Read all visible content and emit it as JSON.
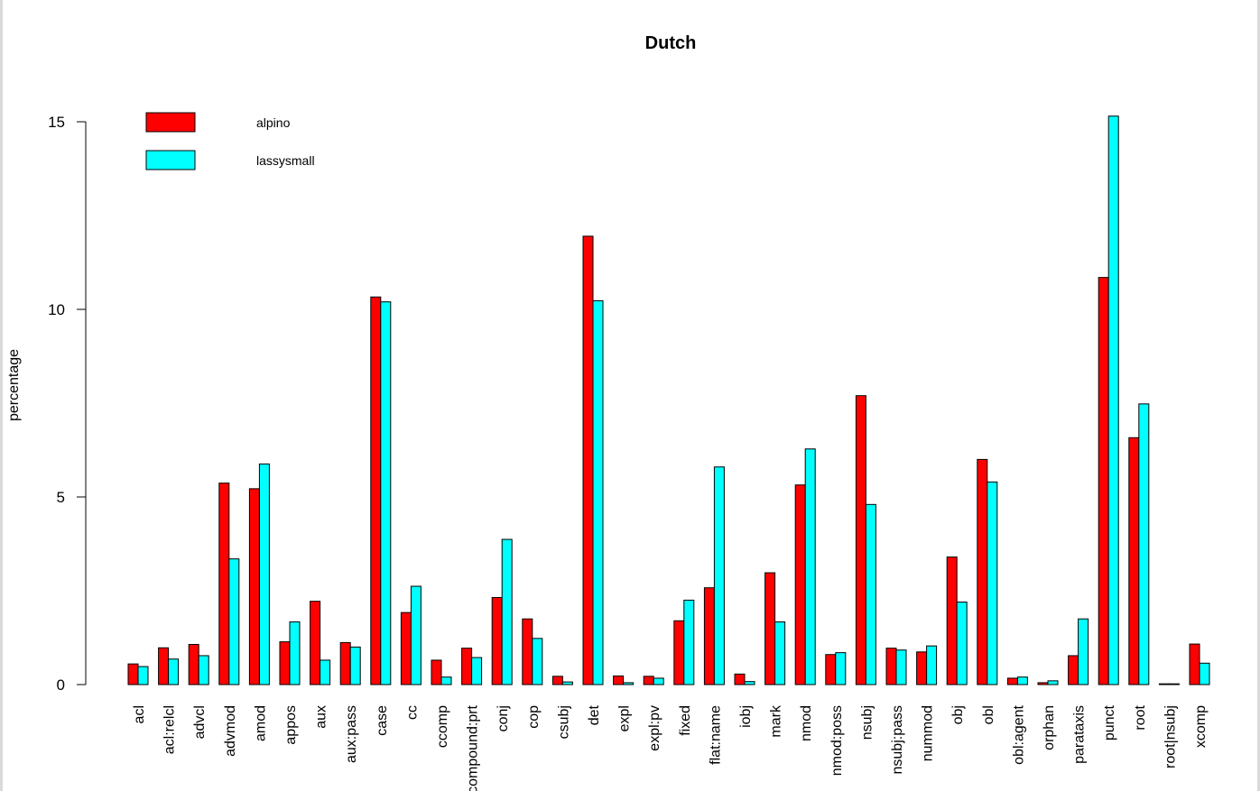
{
  "chart_data": {
    "type": "bar",
    "title": "Dutch",
    "xlabel": "",
    "ylabel": "percentage",
    "ylim": [
      0,
      15
    ],
    "yticks": [
      0,
      5,
      10,
      15
    ],
    "grid": false,
    "legend_position": "top-left",
    "categories": [
      "acl",
      "acl:relcl",
      "advcl",
      "advmod",
      "amod",
      "appos",
      "aux",
      "aux:pass",
      "case",
      "cc",
      "ccomp",
      "compound:prt",
      "conj",
      "cop",
      "csubj",
      "det",
      "expl",
      "expl:pv",
      "fixed",
      "flat:name",
      "iobj",
      "mark",
      "nmod",
      "nmod:poss",
      "nsubj",
      "nsubj:pass",
      "nummod",
      "obj",
      "obl",
      "obl:agent",
      "orphan",
      "parataxis",
      "punct",
      "root",
      "root|nsubj",
      "xcomp"
    ],
    "series": [
      {
        "name": "alpino",
        "color": "#ff0000",
        "values": [
          0.55,
          0.98,
          1.07,
          5.37,
          5.22,
          1.14,
          2.22,
          1.12,
          10.33,
          1.92,
          0.65,
          0.97,
          2.32,
          1.75,
          0.22,
          11.95,
          0.23,
          0.22,
          1.7,
          2.58,
          0.28,
          2.98,
          5.32,
          0.8,
          7.7,
          0.97,
          0.87,
          3.4,
          6.0,
          0.17,
          0.05,
          0.77,
          10.85,
          6.58,
          0.02,
          1.08
        ]
      },
      {
        "name": "lassysmall",
        "color": "#00ffff",
        "values": [
          0.48,
          0.68,
          0.77,
          3.35,
          5.88,
          1.67,
          0.65,
          1.0,
          10.2,
          2.62,
          0.2,
          0.72,
          3.87,
          1.23,
          0.07,
          10.23,
          0.05,
          0.17,
          2.25,
          5.8,
          0.08,
          1.67,
          6.28,
          0.85,
          4.8,
          0.92,
          1.03,
          2.2,
          5.4,
          0.2,
          0.1,
          1.75,
          15.15,
          7.48,
          0.02,
          0.57
        ]
      }
    ]
  }
}
